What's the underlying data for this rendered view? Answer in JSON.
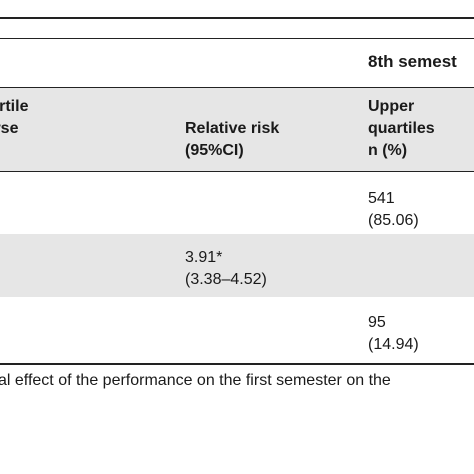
{
  "table": {
    "spanning_header": "8th semest",
    "headers": {
      "col1_line1": "r quartile",
      "col1_line2": "course",
      "col2_line1": "Relative risk",
      "col2_line2": "(95%CI)",
      "col3_line1": "Upper",
      "col3_line2": "quartiles",
      "col3_line3": "n (%)"
    },
    "rows": [
      {
        "col1": ")",
        "col2_line1": "",
        "col2_line2": "",
        "col3_line1": "541",
        "col3_line2": "(85.06)"
      },
      {
        "col1": ")",
        "col2_line1": "3.91*",
        "col2_line2": "(3.38–4.52)",
        "col3_line1": "",
        "col3_line2": ""
      },
      {
        "col1": ")",
        "col2_line1": "",
        "col2_line2": "",
        "col3_line1": "95",
        "col3_line2": "(14.94)"
      }
    ]
  },
  "footnote": "al effect of the performance on the first semester on the"
}
